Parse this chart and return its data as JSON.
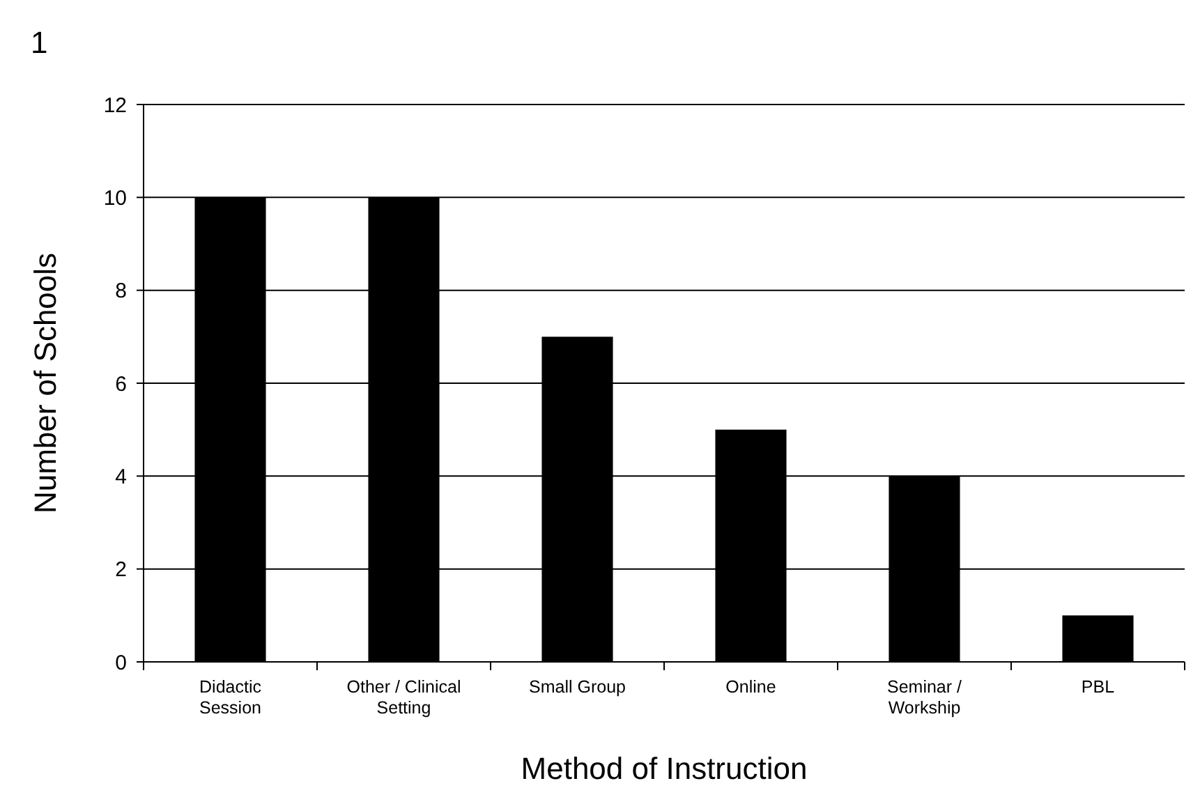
{
  "chart_data": {
    "type": "bar",
    "title": "1",
    "xlabel": "Method of Instruction",
    "ylabel": "Number of Schools",
    "categories": [
      "Didactic\nSession",
      "Other / Clinical\nSetting",
      "Small Group",
      "Online",
      "Seminar /\nWorkship",
      "PBL"
    ],
    "values": [
      10,
      10,
      7,
      5,
      4,
      1
    ],
    "color": "#000000",
    "ylim": [
      0,
      12
    ],
    "yticks": [
      0,
      2,
      4,
      6,
      8,
      10,
      12
    ],
    "grid": "y"
  }
}
